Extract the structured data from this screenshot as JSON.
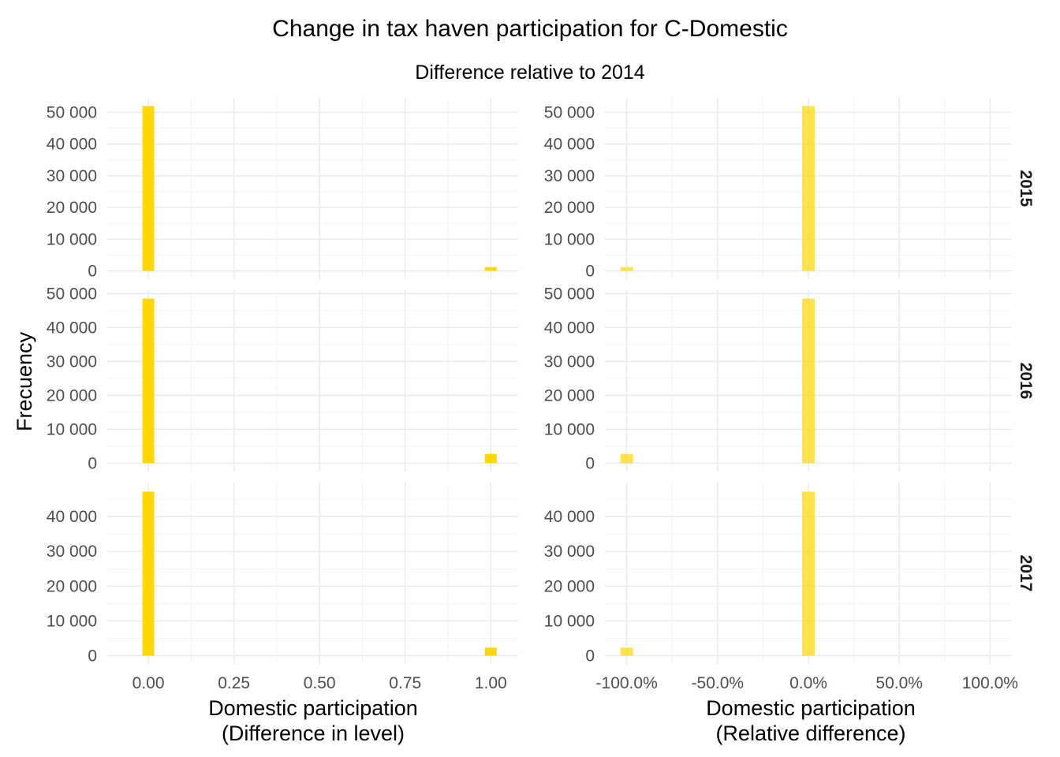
{
  "chart_data": {
    "type": "bar",
    "title": "Change in tax haven participation for C-Domestic",
    "subtitle": "Difference relative to 2014",
    "ylabel": "Frecuency",
    "grid": true,
    "bar_color": "#FFD700",
    "columns": [
      {
        "xlabel_line1": "Domestic participation",
        "xlabel_line2": "(Difference in level)",
        "xlim": [
          -0.12,
          1.08
        ],
        "x_ticks": [
          0,
          0.25,
          0.5,
          0.75,
          1
        ],
        "x_tick_labels": [
          "0.00",
          "0.25",
          "0.50",
          "0.75",
          "1.00"
        ],
        "x_minor_ticks": [
          0.125,
          0.375,
          0.625,
          0.875
        ],
        "bin_width": 0.0345,
        "bar_opacity": 1.0
      },
      {
        "xlabel_line1": "Domestic participation",
        "xlabel_line2": "(Relative difference)",
        "xlim": [
          -1.12,
          1.12
        ],
        "x_ticks": [
          -1,
          -0.5,
          0,
          0.5,
          1
        ],
        "x_tick_labels": [
          "-100.0%",
          "-50.0%",
          "0.0%",
          "50.0%",
          "100.0%"
        ],
        "x_minor_ticks": [
          -0.75,
          -0.25,
          0.25,
          0.75
        ],
        "bin_width": 0.069,
        "bar_opacity": 0.7
      }
    ],
    "rows": [
      {
        "strip": "2015",
        "ylim": [
          -2600,
          54600
        ],
        "y_ticks": [
          0,
          10000,
          20000,
          30000,
          40000,
          50000
        ],
        "y_tick_labels": [
          "0",
          "10 000",
          "20 000",
          "30 000",
          "40 000",
          "50 000"
        ],
        "y_minor_ticks": [
          5000,
          15000,
          25000,
          35000,
          45000
        ],
        "bars": [
          [
            {
              "x": 0,
              "count": 52000
            },
            {
              "x": 1,
              "count": 1200
            }
          ],
          [
            {
              "x": -1,
              "count": 1200
            },
            {
              "x": 0,
              "count": 52000
            }
          ]
        ]
      },
      {
        "strip": "2016",
        "ylim": [
          -2500,
          51000
        ],
        "y_ticks": [
          0,
          10000,
          20000,
          30000,
          40000,
          50000
        ],
        "y_tick_labels": [
          "0",
          "10 000",
          "20 000",
          "30 000",
          "40 000",
          "50 000"
        ],
        "y_minor_ticks": [
          5000,
          15000,
          25000,
          35000,
          45000
        ],
        "bars": [
          [
            {
              "x": 0,
              "count": 48500
            },
            {
              "x": 1,
              "count": 2700
            }
          ],
          [
            {
              "x": -1,
              "count": 2700
            },
            {
              "x": 0,
              "count": 48500
            }
          ]
        ]
      },
      {
        "strip": "2017",
        "ylim": [
          -2400,
          49800
        ],
        "y_ticks": [
          0,
          10000,
          20000,
          30000,
          40000
        ],
        "y_tick_labels": [
          "0",
          "10 000",
          "20 000",
          "30 000",
          "40 000"
        ],
        "y_minor_ticks": [
          5000,
          15000,
          25000,
          35000,
          45000
        ],
        "bars": [
          [
            {
              "x": 0,
              "count": 47200
            },
            {
              "x": 1,
              "count": 2300
            }
          ],
          [
            {
              "x": -1,
              "count": 2300
            },
            {
              "x": 0,
              "count": 47200
            }
          ]
        ]
      }
    ]
  }
}
